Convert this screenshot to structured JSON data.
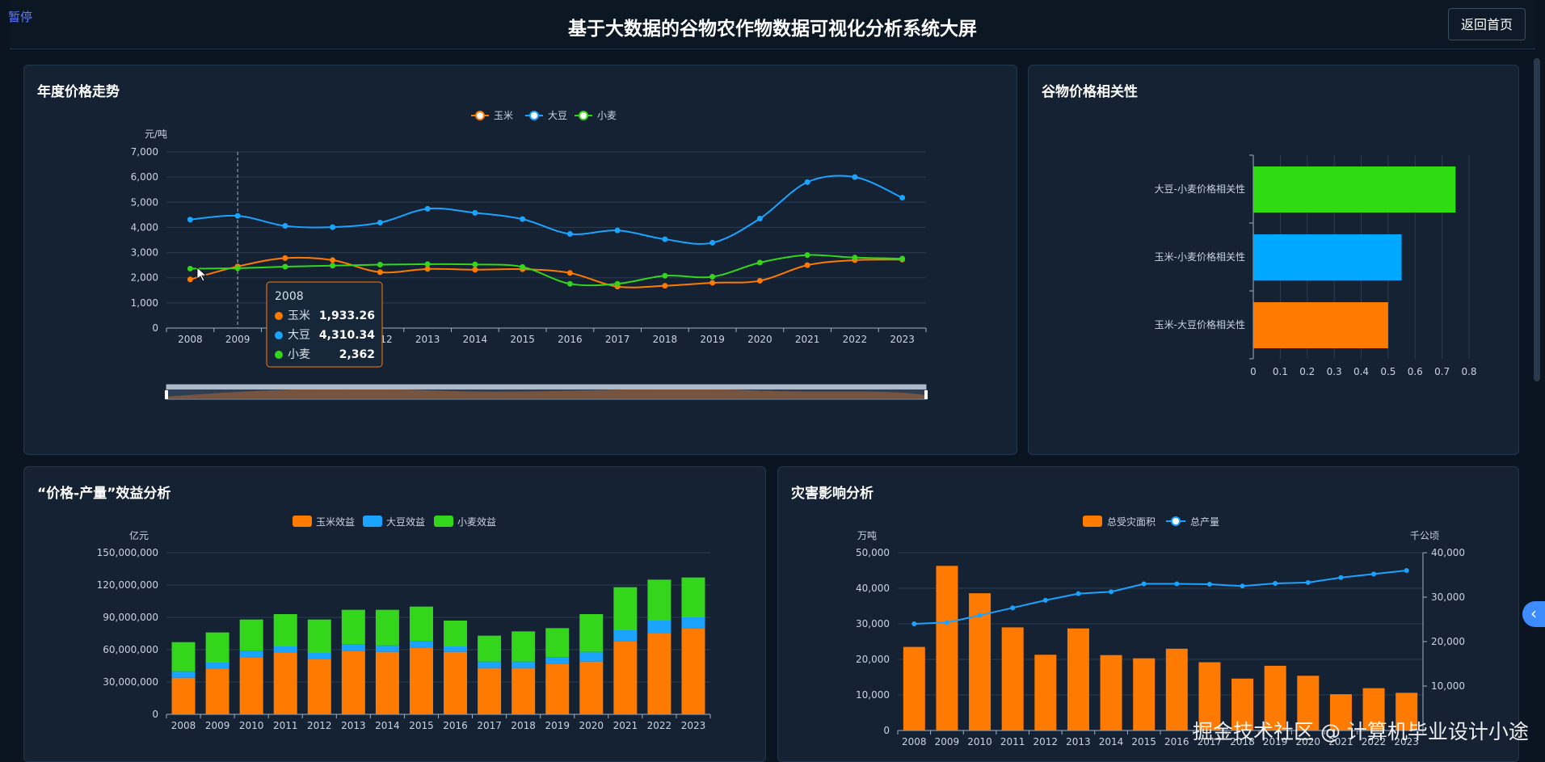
{
  "header": {
    "pause_label": "暂停",
    "title": "基于大数据的谷物农作物数据可视化分析系统大屏",
    "home_button": "返回首页"
  },
  "colors": {
    "corn": "#ff7a00",
    "soy": "#1aa3ff",
    "wheat": "#33d61a",
    "disaster_bar": "#ff7a00",
    "production_line": "#1aa3ff"
  },
  "watermark": "掘金技术社区 @ 计算机毕业设计小途",
  "side_tab_icon": "chevron-left-icon",
  "panels": {
    "price_trend": {
      "title": "年度价格走势",
      "chart_data": {
        "type": "line",
        "title": "年度价格走势",
        "ylabel": "元/吨",
        "ylim": [
          0,
          7000
        ],
        "yticks": [
          "0",
          "1,000",
          "2,000",
          "3,000",
          "4,000",
          "5,000",
          "6,000",
          "7,000"
        ],
        "legend_position": "top-center",
        "categories": [
          "2008",
          "2009",
          "2010",
          "2011",
          "2012",
          "2013",
          "2014",
          "2015",
          "2016",
          "2017",
          "2018",
          "2019",
          "2020",
          "2021",
          "2022",
          "2023"
        ],
        "series": [
          {
            "name": "玉米",
            "color": "#ff7a00",
            "values": [
              1933.26,
              2450,
              2780,
              2700,
              2220,
              2350,
              2320,
              2340,
              2190,
              1650,
              1680,
              1800,
              1880,
              2500,
              2700,
              2720
            ]
          },
          {
            "name": "大豆",
            "color": "#1aa3ff",
            "values": [
              4310.34,
              4460,
              4060,
              4010,
              4190,
              4740,
              4580,
              4330,
              3740,
              3880,
              3530,
              3390,
              4350,
              5800,
              6000,
              5180
            ]
          },
          {
            "name": "小麦",
            "color": "#33d61a",
            "values": [
              2362,
              2380,
              2440,
              2480,
              2520,
              2540,
              2530,
              2430,
              1760,
              1760,
              2080,
              2040,
              2600,
              2900,
              2800,
              2760
            ]
          }
        ],
        "tooltip": {
          "title": "2008",
          "rows": [
            {
              "name": "玉米",
              "value": "1,933.26"
            },
            {
              "name": "大豆",
              "value": "4,310.34"
            },
            {
              "name": "小麦",
              "value": "2,362"
            }
          ]
        },
        "grid": true,
        "datazoom": true
      }
    },
    "correlation": {
      "title": "谷物价格相关性",
      "chart_data": {
        "type": "bar",
        "orientation": "horizontal",
        "title": "谷物价格相关性",
        "categories": [
          "玉米-大豆价格相关性",
          "玉米-小麦价格相关性",
          "大豆-小麦价格相关性"
        ],
        "values": [
          0.5,
          0.55,
          0.75
        ],
        "colors": [
          "#ff7a00",
          "#00a8ff",
          "#2fdc12"
        ],
        "xlim": [
          0,
          0.8
        ],
        "xticks": [
          "0",
          "0.1",
          "0.2",
          "0.3",
          "0.4",
          "0.5",
          "0.6",
          "0.7",
          "0.8"
        ]
      }
    },
    "benefit": {
      "title": "“价格-产量”效益分析",
      "chart_data": {
        "type": "bar",
        "stacked": true,
        "title": "“价格-产量”效益分析",
        "ylabel": "亿元",
        "ylim": [
          0,
          150000000
        ],
        "yticks": [
          "0",
          "30,000,000",
          "60,000,000",
          "90,000,000",
          "120,000,000",
          "150,000,000"
        ],
        "legend_position": "top-center",
        "categories": [
          "2008",
          "2009",
          "2010",
          "2011",
          "2012",
          "2013",
          "2014",
          "2015",
          "2016",
          "2017",
          "2018",
          "2019",
          "2020",
          "2021",
          "2022",
          "2023"
        ],
        "series": [
          {
            "name": "玉米效益",
            "color": "#ff7a00",
            "values": [
              34000000,
              42000000,
              53000000,
              57000000,
              51000000,
              59000000,
              58000000,
              62000000,
              58000000,
              43000000,
              43000000,
              47000000,
              49000000,
              68000000,
              75000000,
              80000000
            ]
          },
          {
            "name": "大豆效益",
            "color": "#1aa3ff",
            "values": [
              6000000,
              6000000,
              6000000,
              6000000,
              6000000,
              6000000,
              6000000,
              6000000,
              5000000,
              6000000,
              6000000,
              6000000,
              9000000,
              10000000,
              12000000,
              10000000
            ]
          },
          {
            "name": "小麦效益",
            "color": "#33d61a",
            "values": [
              27000000,
              28000000,
              29000000,
              30000000,
              31000000,
              32000000,
              33000000,
              32000000,
              24000000,
              24000000,
              28000000,
              27000000,
              35000000,
              40000000,
              38000000,
              37000000
            ]
          }
        ]
      }
    },
    "disaster": {
      "title": "灾害影响分析",
      "chart_data": {
        "type": "bar",
        "title": "灾害影响分析",
        "legend_position": "top-center",
        "ylabel_left": "万吨",
        "ylabel_right": "千公顷",
        "ylim_left": [
          0,
          50000
        ],
        "ylim_right": [
          0,
          40000
        ],
        "yticks_left": [
          "0",
          "10,000",
          "20,000",
          "30,000",
          "40,000",
          "50,000"
        ],
        "yticks_right": [
          "10,000",
          "20,000",
          "30,000",
          "40,000"
        ],
        "categories": [
          "2008",
          "2009",
          "2010",
          "2011",
          "2012",
          "2013",
          "2014",
          "2015",
          "2016",
          "2017",
          "2018",
          "2019",
          "2020",
          "2021",
          "2022",
          "2023"
        ],
        "series": [
          {
            "name": "总受灾面积",
            "type": "bar",
            "axis": "left",
            "color": "#ff7a00",
            "values": [
              23500,
              46300,
              38600,
              29000,
              21300,
              28700,
              21200,
              20300,
              23000,
              19200,
              14600,
              18200,
              15400,
              10200,
              11900,
              10600
            ]
          },
          {
            "name": "总产量",
            "type": "line",
            "axis": "right",
            "color": "#1aa3ff",
            "values": [
              24000,
              24300,
              25900,
              27600,
              29300,
              30800,
              31200,
              33000,
              33000,
              32900,
              32500,
              33100,
              33300,
              34400,
              35200,
              36000
            ]
          }
        ]
      }
    }
  }
}
